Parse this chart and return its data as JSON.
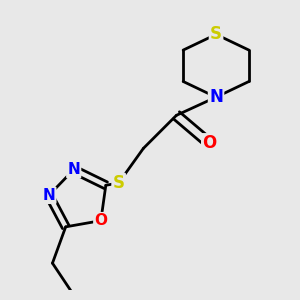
{
  "background_color": "#e8e8e8",
  "atom_colors": {
    "C": "#000000",
    "N": "#0000ff",
    "O": "#ff0000",
    "S": "#cccc00",
    "H": "#000000"
  },
  "bond_color": "#000000",
  "bond_width": 2.0,
  "figsize": [
    3.0,
    3.0
  ],
  "dpi": 100
}
